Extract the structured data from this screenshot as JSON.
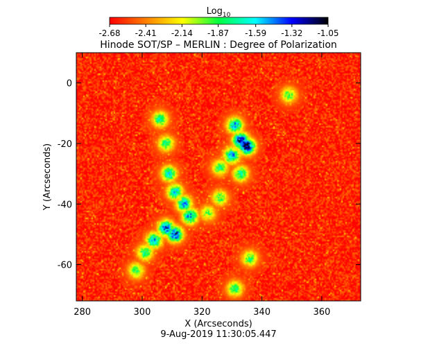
{
  "chart_data": {
    "type": "heatmap",
    "title": "Hinode SOT/SP – MERLIN : Degree of Polarization",
    "colorbar": {
      "label_base": "Log",
      "label_sub": "10",
      "ticks": [
        "-2.68",
        "-2.41",
        "-2.14",
        "-1.87",
        "-1.59",
        "-1.32",
        "-1.05"
      ],
      "range": [
        -2.68,
        -1.05
      ],
      "colormap": "rainbow",
      "colors": [
        "#ff0000",
        "#ff8000",
        "#ffff00",
        "#00ff40",
        "#00ffff",
        "#0000ff",
        "#000000"
      ]
    },
    "xlabel": "X (Arcseconds)",
    "ylabel": "Y (Arcseconds)",
    "xlim": [
      278,
      373
    ],
    "ylim": [
      -72,
      10
    ],
    "xticks": [
      280,
      300,
      320,
      340,
      360
    ],
    "yticks": [
      0,
      -20,
      -40,
      -60
    ],
    "timestamp": "9-Aug-2019 11:30:05.447",
    "background_level": -2.6,
    "network_features": [
      {
        "x": 306,
        "y": -12,
        "level": -1.75
      },
      {
        "x": 308,
        "y": -20,
        "level": -1.8
      },
      {
        "x": 309,
        "y": -30,
        "level": -1.65
      },
      {
        "x": 311,
        "y": -36,
        "level": -1.6
      },
      {
        "x": 314,
        "y": -40,
        "level": -1.5
      },
      {
        "x": 316,
        "y": -44,
        "level": -1.5
      },
      {
        "x": 308,
        "y": -48,
        "level": -1.35
      },
      {
        "x": 311,
        "y": -50,
        "level": -1.3
      },
      {
        "x": 304,
        "y": -52,
        "level": -1.55
      },
      {
        "x": 301,
        "y": -56,
        "level": -1.75
      },
      {
        "x": 298,
        "y": -62,
        "level": -1.85
      },
      {
        "x": 331,
        "y": -14,
        "level": -1.5
      },
      {
        "x": 333,
        "y": -19,
        "level": -1.2
      },
      {
        "x": 335,
        "y": -21,
        "level": -1.05
      },
      {
        "x": 330,
        "y": -24,
        "level": -1.5
      },
      {
        "x": 326,
        "y": -28,
        "level": -1.8
      },
      {
        "x": 333,
        "y": -30,
        "level": -1.75
      },
      {
        "x": 326,
        "y": -38,
        "level": -1.85
      },
      {
        "x": 322,
        "y": -43,
        "level": -1.95
      },
      {
        "x": 336,
        "y": -58,
        "level": -1.85
      },
      {
        "x": 331,
        "y": -68,
        "level": -1.8
      },
      {
        "x": 349,
        "y": -4,
        "level": -1.9
      }
    ]
  }
}
